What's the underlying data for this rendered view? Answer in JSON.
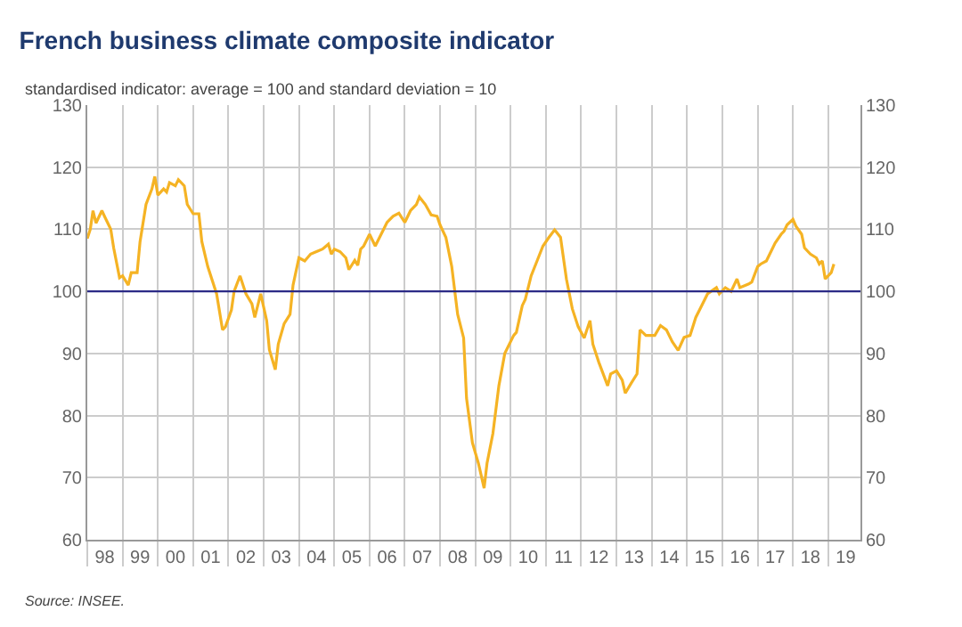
{
  "chart_data": {
    "type": "line",
    "title": "French business climate composite indicator",
    "subtitle": "standardised indicator: average = 100 and standard deviation = 10",
    "annotations": [
      "Source: INSEE."
    ],
    "x": [
      "1998-01",
      "1998-02",
      "1998-03",
      "1998-04",
      "1998-06",
      "1998-07",
      "1998-09",
      "1998-10",
      "1998-12",
      "1999-01",
      "1999-03",
      "1999-04",
      "1999-06",
      "1999-07",
      "1999-09",
      "1999-11",
      "1999-12",
      "2000-01",
      "2000-03",
      "2000-04",
      "2000-05",
      "2000-07",
      "2000-08",
      "2000-10",
      "2000-11",
      "2001-01",
      "2001-03",
      "2001-04",
      "2001-06",
      "2001-09",
      "2001-11",
      "2001-12",
      "2002-02",
      "2002-03",
      "2002-05",
      "2002-07",
      "2002-09",
      "2002-10",
      "2002-12",
      "2003-02",
      "2003-03",
      "2003-05",
      "2003-06",
      "2003-08",
      "2003-10",
      "2003-11",
      "2004-01",
      "2004-03",
      "2004-05",
      "2004-07",
      "2004-09",
      "2004-11",
      "2004-12",
      "2005-01",
      "2005-03",
      "2005-05",
      "2005-06",
      "2005-08",
      "2005-09",
      "2005-10",
      "2005-11",
      "2006-01",
      "2006-03",
      "2006-05",
      "2006-07",
      "2006-09",
      "2006-11",
      "2007-01",
      "2007-03",
      "2007-05",
      "2007-06",
      "2007-08",
      "2007-10",
      "2007-12",
      "2008-01",
      "2008-03",
      "2008-05",
      "2008-07",
      "2008-09",
      "2008-10",
      "2008-12",
      "2009-02",
      "2009-04",
      "2009-05",
      "2009-07",
      "2009-09",
      "2009-11",
      "2010-02",
      "2010-03",
      "2010-05",
      "2010-06",
      "2010-08",
      "2010-10",
      "2010-12",
      "2011-02",
      "2011-04",
      "2011-06",
      "2011-08",
      "2011-10",
      "2011-12",
      "2012-02",
      "2012-04",
      "2012-05",
      "2012-07",
      "2012-10",
      "2012-11",
      "2013-01",
      "2013-03",
      "2013-04",
      "2013-06",
      "2013-08",
      "2013-09",
      "2013-11",
      "2014-02",
      "2014-04",
      "2014-06",
      "2014-08",
      "2014-10",
      "2014-12",
      "2015-02",
      "2015-04",
      "2015-06",
      "2015-08",
      "2015-11",
      "2015-12",
      "2016-02",
      "2016-04",
      "2016-06",
      "2016-07",
      "2016-10",
      "2016-11",
      "2017-01",
      "2017-02",
      "2017-04",
      "2017-07",
      "2017-09",
      "2017-10",
      "2017-11",
      "2018-01",
      "2018-02",
      "2018-04",
      "2018-05",
      "2018-07",
      "2018-09",
      "2018-10",
      "2018-11",
      "2018-12",
      "2019-02",
      "2019-03"
    ],
    "series": [
      {
        "color": "#f5b324",
        "values": [
          108.5,
          110,
          113,
          111,
          113,
          112,
          110,
          107,
          102.2,
          102.5,
          101,
          103,
          103,
          108,
          114,
          116.5,
          118.5,
          115.5,
          116.5,
          116,
          117.5,
          117,
          118,
          117,
          114,
          112.5,
          112.5,
          108,
          104,
          99.6,
          93.8,
          94.3,
          97,
          100,
          102.5,
          99.6,
          98,
          95.8,
          99.6,
          95.3,
          90.6,
          87.4,
          91.5,
          94.8,
          96.3,
          101,
          105.4,
          104.9,
          106,
          106.4,
          106.8,
          107.6,
          106,
          106.8,
          106.4,
          105.4,
          103.5,
          105,
          104.2,
          106.8,
          107.3,
          109.2,
          107.3,
          109.2,
          111.1,
          112.1,
          112.6,
          111.1,
          113,
          114,
          115.2,
          114,
          112.3,
          112.1,
          110.7,
          108.7,
          104,
          96.3,
          92.5,
          82.8,
          75.6,
          72.3,
          68.3,
          72.3,
          77.1,
          84.8,
          90,
          92.9,
          93.4,
          97.7,
          98.7,
          102.5,
          104.9,
          107.3,
          108.7,
          109.9,
          108.7,
          102,
          97.2,
          94.3,
          92.5,
          95.3,
          91.5,
          88.6,
          84.8,
          86.7,
          87.2,
          85.7,
          83.6,
          85.2,
          86.7,
          93.8,
          92.9,
          92.9,
          94.5,
          93.8,
          91.9,
          90.5,
          92.6,
          92.9,
          95.8,
          97.7,
          99.6,
          100.6,
          99.6,
          100.6,
          100,
          102,
          100.6,
          101.2,
          101.5,
          104,
          104.4,
          104.9,
          107.8,
          109.2,
          109.7,
          110.7,
          111.6,
          110.5,
          109.2,
          107,
          106,
          105.4,
          104.4,
          104.9,
          102,
          103,
          104.4
        ]
      }
    ],
    "xlim": [
      "1998-01",
      "2019-12"
    ],
    "xticks": [
      {
        "value": "1998-01",
        "label": null
      },
      {
        "value": "1999-01",
        "label": null
      },
      {
        "value": "2000-01",
        "label": null
      },
      {
        "value": "2001-01",
        "label": null
      },
      {
        "value": "2002-01",
        "label": null
      },
      {
        "value": "2003-01",
        "label": null
      },
      {
        "value": "2004-01",
        "label": null
      },
      {
        "value": "2005-01",
        "label": null
      },
      {
        "value": "2006-01",
        "label": null
      },
      {
        "value": "2007-01",
        "label": null
      },
      {
        "value": "2008-01",
        "label": null
      },
      {
        "value": "2009-01",
        "label": null
      },
      {
        "value": "2010-01",
        "label": null
      },
      {
        "value": "2011-01",
        "label": null
      },
      {
        "value": "2012-01",
        "label": null
      },
      {
        "value": "2013-01",
        "label": null
      },
      {
        "value": "2014-01",
        "label": null
      },
      {
        "value": "2015-01",
        "label": null
      },
      {
        "value": "2016-01",
        "label": null
      },
      {
        "value": "2017-01",
        "label": null
      },
      {
        "value": "2018-01",
        "label": null
      },
      {
        "value": "2019-01",
        "label": null
      },
      {
        "value": "1998-07",
        "label": "98"
      },
      {
        "value": "1999-07",
        "label": "99"
      },
      {
        "value": "2000-07",
        "label": "00"
      },
      {
        "value": "2001-07",
        "label": "01"
      },
      {
        "value": "2002-07",
        "label": "02"
      },
      {
        "value": "2003-07",
        "label": "03"
      },
      {
        "value": "2004-07",
        "label": "04"
      },
      {
        "value": "2005-07",
        "label": "05"
      },
      {
        "value": "2006-07",
        "label": "06"
      },
      {
        "value": "2007-07",
        "label": "07"
      },
      {
        "value": "2008-07",
        "label": "08"
      },
      {
        "value": "2009-07",
        "label": "09"
      },
      {
        "value": "2010-07",
        "label": "10"
      },
      {
        "value": "2011-07",
        "label": "11"
      },
      {
        "value": "2012-07",
        "label": "12"
      },
      {
        "value": "2013-07",
        "label": "13"
      },
      {
        "value": "2014-07",
        "label": "14"
      },
      {
        "value": "2015-07",
        "label": "15"
      },
      {
        "value": "2016-07",
        "label": "16"
      },
      {
        "value": "2017-07",
        "label": "17"
      },
      {
        "value": "2018-07",
        "label": "18"
      },
      {
        "value": "2019-07",
        "label": "19"
      }
    ],
    "ylim": [
      60,
      130
    ],
    "yticks": [
      60,
      70,
      80,
      90,
      100,
      110,
      120,
      130
    ],
    "y2lim": [
      60,
      130
    ],
    "y2ticks": [
      60,
      70,
      80,
      90,
      100,
      110,
      120,
      130
    ],
    "ref_lines": [
      {
        "axis": "y",
        "value": 100,
        "color": "#2b2a86"
      }
    ],
    "grid": true,
    "marker": "none",
    "line_style": "solid"
  }
}
